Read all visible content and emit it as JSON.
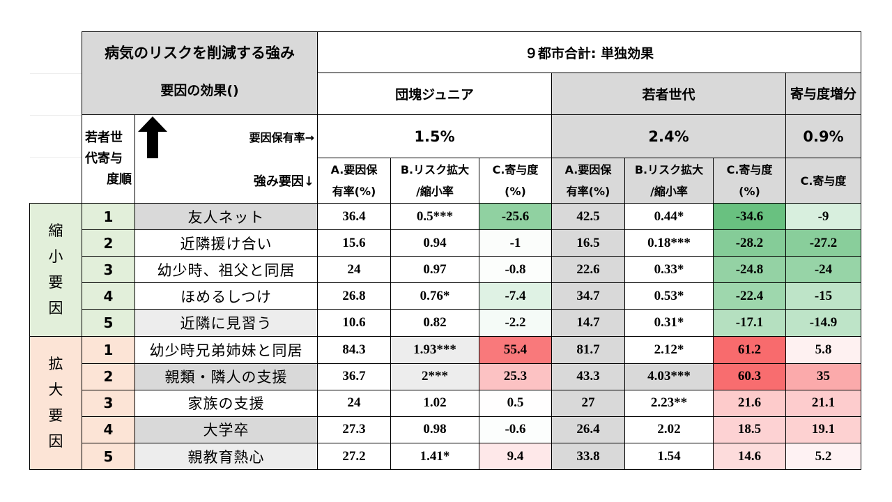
{
  "header": {
    "title_line1": "病気のリスクを削減する強み",
    "title_line2": "要因の効果()",
    "top_label": "９都市合計: 単独効果",
    "group1": "団塊ジュニア",
    "group2": "若者世代",
    "group3": "寄与度増分",
    "rank_label_1": "若者世",
    "rank_label_2": "代寄与",
    "rank_label_3": "度順",
    "holding_rate_label": "要因保有率→",
    "strength_label": "強み要因↓",
    "rate1": "1.5%",
    "rate2": "2.4%",
    "rate3": "0.9%",
    "colA_1": "A.要因保",
    "colA_2": "有率(%)",
    "colB_1": "B.リスク拡大",
    "colB_2": "/縮小率",
    "colC_1": "C.寄与度",
    "colC_2": "(%)",
    "colC_only": "C.寄与度"
  },
  "groups": {
    "reduce": [
      "縮",
      "小",
      "要",
      "因"
    ],
    "expand": [
      "拡",
      "大",
      "要",
      "因"
    ]
  },
  "rows": [
    {
      "rank": "1",
      "factor": "友人ネット",
      "a1": "36.4",
      "b1": "0.5***",
      "c1": "-25.6",
      "a2": "42.5",
      "b2": "0.44*",
      "c2": "-34.6",
      "d": "-9"
    },
    {
      "rank": "2",
      "factor": "近隣援け合い",
      "a1": "15.6",
      "b1": "0.94",
      "c1": "-1",
      "a2": "16.5",
      "b2": "0.18***",
      "c2": "-28.2",
      "d": "-27.2"
    },
    {
      "rank": "3",
      "factor": "幼少時、祖父と同居",
      "a1": "24",
      "b1": "0.97",
      "c1": "-0.8",
      "a2": "22.6",
      "b2": "0.33*",
      "c2": "-24.8",
      "d": "-24"
    },
    {
      "rank": "4",
      "factor": "ほめるしつけ",
      "a1": "26.8",
      "b1": "0.76*",
      "c1": "-7.4",
      "a2": "34.7",
      "b2": "0.53*",
      "c2": "-22.4",
      "d": "-15"
    },
    {
      "rank": "5",
      "factor": "近隣に見習う",
      "a1": "10.6",
      "b1": "0.82",
      "c1": "-2.2",
      "a2": "14.7",
      "b2": "0.31*",
      "c2": "-17.1",
      "d": "-14.9"
    },
    {
      "rank": "1",
      "factor": "幼少時兄弟姉妹と同居",
      "a1": "84.3",
      "b1": "1.93***",
      "c1": "55.4",
      "a2": "81.7",
      "b2": "2.12*",
      "c2": "61.2",
      "d": "5.8"
    },
    {
      "rank": "2",
      "factor": "親類・隣人の支援",
      "a1": "36.7",
      "b1": "2***",
      "c1": "25.3",
      "a2": "43.3",
      "b2": "4.03***",
      "c2": "60.3",
      "d": "35"
    },
    {
      "rank": "3",
      "factor": "家族の支援",
      "a1": "24",
      "b1": "1.02",
      "c1": "0.5",
      "a2": "27",
      "b2": "2.23**",
      "c2": "21.6",
      "d": "21.1"
    },
    {
      "rank": "4",
      "factor": "大学卒",
      "a1": "27.3",
      "b1": "0.98",
      "c1": "-0.6",
      "a2": "26.4",
      "b2": "2.02",
      "c2": "18.5",
      "d": "19.1"
    },
    {
      "rank": "5",
      "factor": "親教育熱心",
      "a1": "27.2",
      "b1": "1.41*",
      "c1": "9.4",
      "a2": "33.8",
      "b2": "1.54",
      "c2": "14.6",
      "d": "5.2"
    }
  ],
  "colors": {
    "header_gray": "#d9d9d9",
    "light_gray": "#ededed",
    "reduce_group": "#e2efda",
    "expand_group": "#fce4d6",
    "green_strong": "#63be7b",
    "red_strong": "#f8696b"
  }
}
